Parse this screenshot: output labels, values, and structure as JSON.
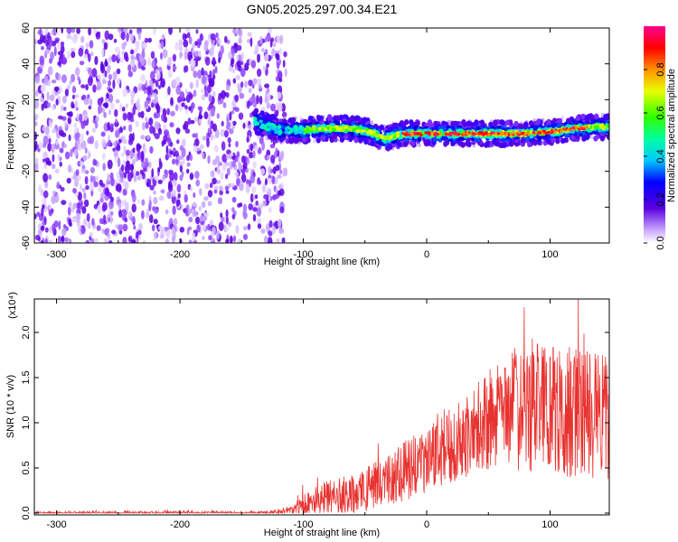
{
  "title": "GN05.2025.297.00.34.E21",
  "chart_data": [
    {
      "type": "heatmap",
      "name": "spectrogram",
      "xlabel": "Height of straight line (km)",
      "ylabel": "Frequency (Hz)",
      "xlim": [
        -318,
        148
      ],
      "ylim": [
        -60,
        60
      ],
      "xticks": [
        -300,
        -200,
        -100,
        0,
        100
      ],
      "xtick_labels": [
        "-300",
        "-200",
        "-100",
        "0",
        "100"
      ],
      "yticks": [
        -60,
        -40,
        -20,
        0,
        20,
        40,
        60
      ],
      "ytick_labels": [
        "-60",
        "-40",
        "-20",
        "0",
        "20",
        "40",
        "60"
      ],
      "noise_region_x": [
        -318,
        -122
      ],
      "signal_band_center_hz": [
        {
          "x": -140,
          "y": 8
        },
        {
          "x": -120,
          "y": 3
        },
        {
          "x": -100,
          "y": 3
        },
        {
          "x": -80,
          "y": 4
        },
        {
          "x": -60,
          "y": 4
        },
        {
          "x": -45,
          "y": 2
        },
        {
          "x": -35,
          "y": -2
        },
        {
          "x": -20,
          "y": 1
        },
        {
          "x": 0,
          "y": 1
        },
        {
          "x": 20,
          "y": 1
        },
        {
          "x": 40,
          "y": 1
        },
        {
          "x": 60,
          "y": 1
        },
        {
          "x": 80,
          "y": 1
        },
        {
          "x": 100,
          "y": 2
        },
        {
          "x": 120,
          "y": 4
        },
        {
          "x": 148,
          "y": 5
        }
      ],
      "colorbar": {
        "label": "Normalized spectral amplitude",
        "range": [
          0,
          1
        ],
        "ticks": [
          0.0,
          0.2,
          0.4,
          0.6,
          0.8
        ],
        "tick_labels": [
          "0.0",
          "0.2",
          "0.4",
          "0.6",
          "0.8"
        ]
      }
    },
    {
      "type": "line",
      "name": "snr",
      "xlabel": "Height of straight line (km)",
      "ylabel": "SNR (10 * v/v)",
      "exponent_label": "(x10⁴)",
      "xlim": [
        -318,
        148
      ],
      "ylim": [
        -0.02,
        2.37
      ],
      "xticks": [
        -300,
        -200,
        -100,
        0,
        100
      ],
      "xtick_labels": [
        "-300",
        "-200",
        "-100",
        "0",
        "100"
      ],
      "yticks": [
        0.0,
        0.5,
        1.0,
        1.5,
        2.0
      ],
      "ytick_labels": [
        "0.0",
        "0.5",
        "1.0",
        "1.5",
        "2.0"
      ],
      "line_color": "#e8322f",
      "envelope": [
        {
          "x": -318,
          "mean": 0.0,
          "amp": 0.02
        },
        {
          "x": -130,
          "mean": 0.0,
          "amp": 0.02
        },
        {
          "x": -110,
          "mean": 0.03,
          "amp": 0.05
        },
        {
          "x": -100,
          "mean": 0.1,
          "amp": 0.12
        },
        {
          "x": -80,
          "mean": 0.17,
          "amp": 0.2
        },
        {
          "x": -60,
          "mean": 0.2,
          "amp": 0.22
        },
        {
          "x": -40,
          "mean": 0.3,
          "amp": 0.28
        },
        {
          "x": -20,
          "mean": 0.45,
          "amp": 0.32
        },
        {
          "x": 0,
          "mean": 0.6,
          "amp": 0.38
        },
        {
          "x": 20,
          "mean": 0.75,
          "amp": 0.42
        },
        {
          "x": 40,
          "mean": 0.95,
          "amp": 0.5
        },
        {
          "x": 60,
          "mean": 1.1,
          "amp": 0.6
        },
        {
          "x": 80,
          "mean": 1.2,
          "amp": 0.75
        },
        {
          "x": 100,
          "mean": 1.15,
          "amp": 0.7
        },
        {
          "x": 120,
          "mean": 1.1,
          "amp": 0.75
        },
        {
          "x": 148,
          "mean": 1.05,
          "amp": 0.7
        }
      ]
    }
  ]
}
